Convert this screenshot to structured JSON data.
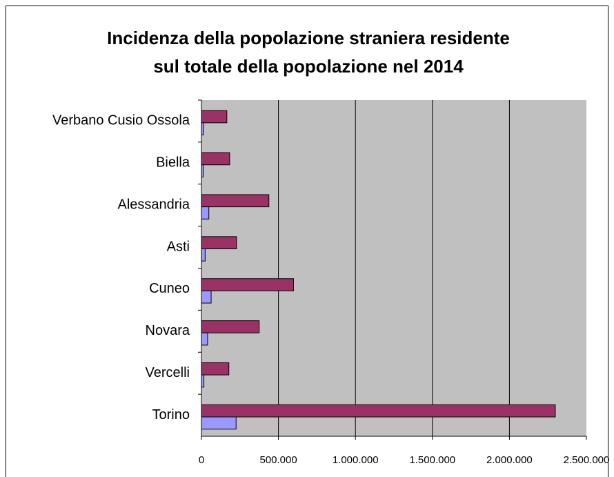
{
  "chart_data": {
    "type": "hbar",
    "title": [
      "Incidenza della popolazione straniera residente",
      "sul totale della popolazione nel 2014"
    ],
    "categories": [
      "Verbano Cusio Ossola",
      "Biella",
      "Alessandria",
      "Asti",
      "Cuneo",
      "Novara",
      "Vercelli",
      "Torino"
    ],
    "series": [
      {
        "color": "#993366",
        "values": [
          165000,
          183000,
          438000,
          228000,
          598000,
          375000,
          178000,
          2298000
        ]
      },
      {
        "color": "#9999ff",
        "values": [
          12000,
          11000,
          48000,
          24000,
          63000,
          40000,
          16000,
          225000
        ]
      }
    ],
    "xlim": [
      0,
      2500000
    ],
    "xticks": [
      0,
      {
        "value": 500000,
        "label": "500.000"
      },
      {
        "value": 1000000,
        "label": "1.000.000"
      },
      {
        "value": 1500000,
        "label": "1.500.000"
      },
      {
        "value": 2000000,
        "label": "2.000.000"
      },
      {
        "value": 2500000,
        "label": "2.500.000"
      }
    ],
    "grid": true
  }
}
